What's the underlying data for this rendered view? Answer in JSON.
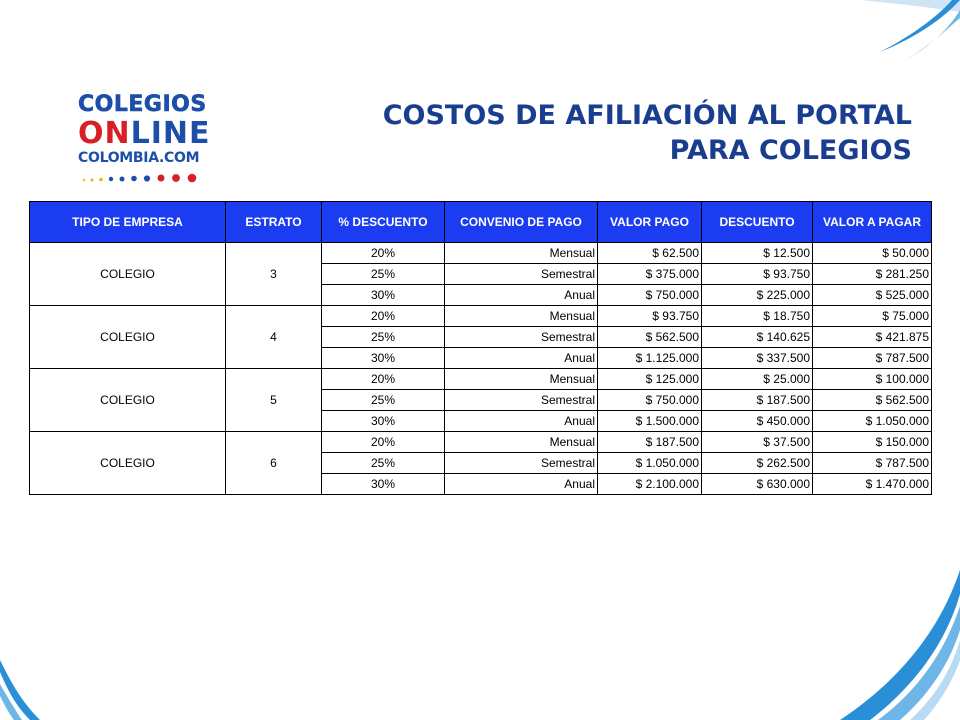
{
  "logo": {
    "line1": "COLEGIOS",
    "line2_on": "ON",
    "line2_rest": "LINE",
    "line3": "COLOMBIA.COM"
  },
  "title": {
    "line1": "COSTOS DE AFILIACIÓN AL PORTAL",
    "line2": "PARA COLEGIOS"
  },
  "table": {
    "headers": [
      "TIPO DE EMPRESA",
      "ESTRATO",
      "% DESCUENTO",
      "CONVENIO DE PAGO",
      "VALOR PAGO",
      "DESCUENTO",
      "VALOR A PAGAR"
    ],
    "groups": [
      {
        "empresa": "COLEGIO",
        "estrato": "3",
        "rows": [
          [
            "20%",
            "Mensual",
            "$ 62.500",
            "$ 12.500",
            "$ 50.000"
          ],
          [
            "25%",
            "Semestral",
            "$ 375.000",
            "$ 93.750",
            "$ 281.250"
          ],
          [
            "30%",
            "Anual",
            "$ 750.000",
            "$ 225.000",
            "$ 525.000"
          ]
        ]
      },
      {
        "empresa": "COLEGIO",
        "estrato": "4",
        "rows": [
          [
            "20%",
            "Mensual",
            "$ 93.750",
            "$ 18.750",
            "$ 75.000"
          ],
          [
            "25%",
            "Semestral",
            "$ 562.500",
            "$ 140.625",
            "$ 421.875"
          ],
          [
            "30%",
            "Anual",
            "$ 1.125.000",
            "$ 337.500",
            "$ 787.500"
          ]
        ]
      },
      {
        "empresa": "COLEGIO",
        "estrato": "5",
        "rows": [
          [
            "20%",
            "Mensual",
            "$ 125.000",
            "$ 25.000",
            "$ 100.000"
          ],
          [
            "25%",
            "Semestral",
            "$ 750.000",
            "$ 187.500",
            "$ 562.500"
          ],
          [
            "30%",
            "Anual",
            "$ 1.500.000",
            "$ 450.000",
            "$ 1.050.000"
          ]
        ]
      },
      {
        "empresa": "COLEGIO",
        "estrato": "6",
        "rows": [
          [
            "20%",
            "Mensual",
            "$ 187.500",
            "$ 37.500",
            "$ 150.000"
          ],
          [
            "25%",
            "Semestral",
            "$ 1.050.000",
            "$ 262.500",
            "$ 787.500"
          ],
          [
            "30%",
            "Anual",
            "$ 2.100.000",
            "$ 630.000",
            "$ 1.470.000"
          ]
        ]
      }
    ]
  },
  "colors": {
    "header_bg": "#1b3cf0",
    "title": "#1a3e8f",
    "logo_blue": "#1d4fa8",
    "logo_red": "#d81f26",
    "swoosh": "#2a8fd6"
  }
}
